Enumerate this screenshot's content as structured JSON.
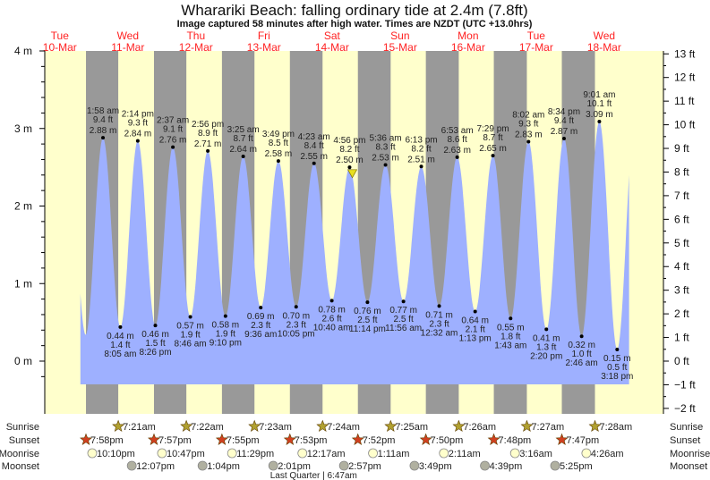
{
  "title": "Wharariki Beach: falling  ordinary tide at 2.4m (7.8ft)",
  "subtitle": "Image captured 58 minutes after high water. Times are NZDT (UTC +13.0hrs)",
  "colors": {
    "day": "#ffffcc",
    "night": "#999999",
    "water": "#9eb0ff",
    "day_label": "#ff2222",
    "sunrise_star": "#b0a030",
    "sunset_star": "#d04020",
    "moonrise": "#ffffcc",
    "moonset": "#b0b0a0"
  },
  "days": [
    {
      "dow": "Tue",
      "date": "10-Mar"
    },
    {
      "dow": "Wed",
      "date": "11-Mar"
    },
    {
      "dow": "Thu",
      "date": "12-Mar"
    },
    {
      "dow": "Fri",
      "date": "13-Mar"
    },
    {
      "dow": "Sat",
      "date": "14-Mar"
    },
    {
      "dow": "Sun",
      "date": "15-Mar"
    },
    {
      "dow": "Mon",
      "date": "16-Mar"
    },
    {
      "dow": "Tue",
      "date": "17-Mar"
    },
    {
      "dow": "Wed",
      "date": "18-Mar"
    }
  ],
  "chart_data": {
    "type": "area",
    "ylim_m": [
      -0.3,
      4
    ],
    "left_axis_ticks": [
      "4 m",
      "3 m",
      "2 m",
      "1 m",
      "0 m"
    ],
    "right_axis_ticks": [
      "13 ft",
      "12 ft",
      "11 ft",
      "10 ft",
      "9 ft",
      "8 ft",
      "7 ft",
      "6 ft",
      "5 ft",
      "4 ft",
      "3 ft",
      "2 ft",
      "1 ft",
      "0 ft",
      "−1 ft",
      "−2 ft"
    ],
    "current": {
      "state": "falling",
      "height_m": 2.4,
      "height_ft": 7.8,
      "day": "14-Mar",
      "time": "5:54 pm"
    },
    "extremes": [
      {
        "type": "high",
        "day": "11-Mar",
        "time": "1:58 am",
        "m": "2.88 m",
        "ft": "9.4 ft",
        "value": 2.88
      },
      {
        "type": "low",
        "day": "11-Mar",
        "time": "8:05 am",
        "m": "0.44 m",
        "ft": "1.4 ft",
        "value": 0.44
      },
      {
        "type": "high",
        "day": "11-Mar",
        "time": "2:14 pm",
        "m": "2.84 m",
        "ft": "9.3 ft",
        "value": 2.84
      },
      {
        "type": "low",
        "day": "11-Mar",
        "time": "8:26 pm",
        "m": "0.46 m",
        "ft": "1.5 ft",
        "value": 0.46
      },
      {
        "type": "high",
        "day": "12-Mar",
        "time": "2:37 am",
        "m": "2.76 m",
        "ft": "9.1 ft",
        "value": 2.76
      },
      {
        "type": "low",
        "day": "12-Mar",
        "time": "8:46 am",
        "m": "0.57 m",
        "ft": "1.9 ft",
        "value": 0.57
      },
      {
        "type": "high",
        "day": "12-Mar",
        "time": "2:56 pm",
        "m": "2.71 m",
        "ft": "8.9 ft",
        "value": 2.71
      },
      {
        "type": "low",
        "day": "12-Mar",
        "time": "9:10 pm",
        "m": "0.58 m",
        "ft": "1.9 ft",
        "value": 0.58
      },
      {
        "type": "high",
        "day": "13-Mar",
        "time": "3:25 am",
        "m": "2.64 m",
        "ft": "8.7 ft",
        "value": 2.64
      },
      {
        "type": "low",
        "day": "13-Mar",
        "time": "9:36 am",
        "m": "0.69 m",
        "ft": "2.3 ft",
        "value": 0.69
      },
      {
        "type": "high",
        "day": "13-Mar",
        "time": "3:49 pm",
        "m": "2.58 m",
        "ft": "8.5 ft",
        "value": 2.58
      },
      {
        "type": "low",
        "day": "13-Mar",
        "time": "10:05 pm",
        "m": "0.70 m",
        "ft": "2.3 ft",
        "value": 0.7
      },
      {
        "type": "high",
        "day": "14-Mar",
        "time": "4:23 am",
        "m": "2.55 m",
        "ft": "8.4 ft",
        "value": 2.55
      },
      {
        "type": "low",
        "day": "14-Mar",
        "time": "10:40 am",
        "m": "0.78 m",
        "ft": "2.6 ft",
        "value": 0.78
      },
      {
        "type": "high",
        "day": "14-Mar",
        "time": "4:56 pm",
        "m": "2.50 m",
        "ft": "8.2 ft",
        "value": 2.5
      },
      {
        "type": "low",
        "day": "14-Mar",
        "time": "11:14 pm",
        "m": "0.76 m",
        "ft": "2.5 ft",
        "value": 0.76
      },
      {
        "type": "high",
        "day": "15-Mar",
        "time": "5:36 am",
        "m": "2.53 m",
        "ft": "8.3 ft",
        "value": 2.53
      },
      {
        "type": "low",
        "day": "15-Mar",
        "time": "11:56 am",
        "m": "0.77 m",
        "ft": "2.5 ft",
        "value": 0.77
      },
      {
        "type": "high",
        "day": "15-Mar",
        "time": "6:13 pm",
        "m": "2.51 m",
        "ft": "8.2 ft",
        "value": 2.51
      },
      {
        "type": "low",
        "day": "16-Mar",
        "time": "12:32 am",
        "m": "0.71 m",
        "ft": "2.3 ft",
        "value": 0.71
      },
      {
        "type": "high",
        "day": "16-Mar",
        "time": "6:53 am",
        "m": "2.63 m",
        "ft": "8.6 ft",
        "value": 2.63
      },
      {
        "type": "low",
        "day": "16-Mar",
        "time": "1:13 pm",
        "m": "0.64 m",
        "ft": "2.1 ft",
        "value": 0.64
      },
      {
        "type": "high",
        "day": "16-Mar",
        "time": "7:29 pm",
        "m": "2.65 m",
        "ft": "8.7 ft",
        "value": 2.65
      },
      {
        "type": "low",
        "day": "17-Mar",
        "time": "1:43 am",
        "m": "0.55 m",
        "ft": "1.8 ft",
        "value": 0.55
      },
      {
        "type": "high",
        "day": "17-Mar",
        "time": "8:02 am",
        "m": "2.83 m",
        "ft": "9.3 ft",
        "value": 2.83
      },
      {
        "type": "low",
        "day": "17-Mar",
        "time": "2:20 pm",
        "m": "0.41 m",
        "ft": "1.3 ft",
        "value": 0.41
      },
      {
        "type": "high",
        "day": "17-Mar",
        "time": "8:34 pm",
        "m": "2.87 m",
        "ft": "9.4 ft",
        "value": 2.87
      },
      {
        "type": "low",
        "day": "18-Mar",
        "time": "2:46 am",
        "m": "0.32 m",
        "ft": "1.0 ft",
        "value": 0.32
      },
      {
        "type": "high",
        "day": "18-Mar",
        "time": "9:01 am",
        "m": "3.09 m",
        "ft": "10.1 ft",
        "value": 3.09
      },
      {
        "type": "low",
        "day": "18-Mar",
        "time": "3:18 pm",
        "m": "0.15 m",
        "ft": "0.5 ft",
        "value": 0.15
      }
    ]
  },
  "rows": {
    "sunrise": {
      "label": "Sunrise",
      "events": [
        {
          "day": "11-Mar",
          "time": "7:21am"
        },
        {
          "day": "12-Mar",
          "time": "7:22am"
        },
        {
          "day": "13-Mar",
          "time": "7:23am"
        },
        {
          "day": "14-Mar",
          "time": "7:24am"
        },
        {
          "day": "15-Mar",
          "time": "7:25am"
        },
        {
          "day": "16-Mar",
          "time": "7:26am"
        },
        {
          "day": "17-Mar",
          "time": "7:27am"
        },
        {
          "day": "18-Mar",
          "time": "7:28am"
        }
      ]
    },
    "sunset": {
      "label": "Sunset",
      "events": [
        {
          "day": "10-Mar",
          "time": "7:58pm"
        },
        {
          "day": "11-Mar",
          "time": "7:57pm"
        },
        {
          "day": "12-Mar",
          "time": "7:55pm"
        },
        {
          "day": "13-Mar",
          "time": "7:53pm"
        },
        {
          "day": "14-Mar",
          "time": "7:52pm"
        },
        {
          "day": "15-Mar",
          "time": "7:50pm"
        },
        {
          "day": "16-Mar",
          "time": "7:48pm"
        },
        {
          "day": "17-Mar",
          "time": "7:47pm"
        }
      ]
    },
    "moonrise": {
      "label": "Moonrise",
      "events": [
        {
          "day": "10-Mar",
          "time": "10:10pm"
        },
        {
          "day": "11-Mar",
          "time": "10:47pm"
        },
        {
          "day": "12-Mar",
          "time": "11:29pm"
        },
        {
          "day": "14-Mar",
          "time": "12:17am"
        },
        {
          "day": "15-Mar",
          "time": "1:11am"
        },
        {
          "day": "16-Mar",
          "time": "2:11am"
        },
        {
          "day": "17-Mar",
          "time": "3:16am"
        },
        {
          "day": "18-Mar",
          "time": "4:26am"
        }
      ]
    },
    "moonset": {
      "label": "Moonset",
      "events": [
        {
          "day": "11-Mar",
          "time": "12:07pm"
        },
        {
          "day": "12-Mar",
          "time": "1:04pm"
        },
        {
          "day": "13-Mar",
          "time": "2:01pm"
        },
        {
          "day": "14-Mar",
          "time": "2:57pm"
        },
        {
          "day": "15-Mar",
          "time": "3:49pm"
        },
        {
          "day": "16-Mar",
          "time": "4:39pm"
        },
        {
          "day": "17-Mar",
          "time": "5:25pm"
        }
      ]
    }
  },
  "moon_phase": {
    "day": "14-Mar",
    "text": "Last Quarter | 6:47am"
  }
}
